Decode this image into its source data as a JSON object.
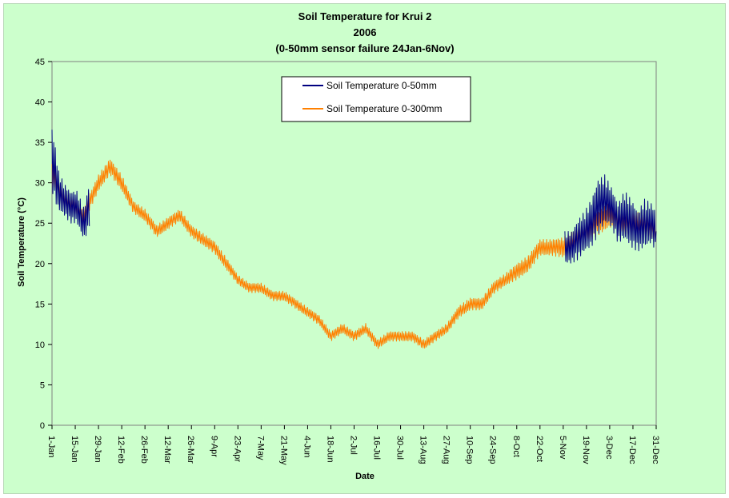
{
  "chart_data": {
    "type": "line",
    "title": "Soil Temperature for Krui 2",
    "subtitle": "2006",
    "note": "(0-50mm sensor failure 24Jan-6Nov)",
    "xlabel": "Date",
    "ylabel": "Soil Temperature (°C)",
    "ylim": [
      0,
      45
    ],
    "yticks": [
      0,
      5,
      10,
      15,
      20,
      25,
      30,
      35,
      40,
      45
    ],
    "xlim": [
      "2006-01-01",
      "2006-12-31"
    ],
    "xticks": [
      "1-Jan",
      "15-Jan",
      "29-Jan",
      "12-Feb",
      "26-Feb",
      "12-Mar",
      "26-Mar",
      "9-Apr",
      "23-Apr",
      "7-May",
      "21-May",
      "4-Jun",
      "18-Jun",
      "2-Jul",
      "16-Jul",
      "30-Jul",
      "13-Aug",
      "27-Aug",
      "10-Sep",
      "24-Sep",
      "8-Oct",
      "22-Oct",
      "5-Nov",
      "19-Nov",
      "3-Dec",
      "17-Dec",
      "31-Dec"
    ],
    "grid": false,
    "legend_position": "top-center",
    "series": [
      {
        "name": "Soil Temperature 0-50mm",
        "color": "#000080",
        "x": [
          "2006-01-01",
          "2006-01-03",
          "2006-01-05",
          "2006-01-08",
          "2006-01-12",
          "2006-01-16",
          "2006-01-20",
          "2006-01-22",
          "2006-01-24",
          "2006-11-06",
          "2006-11-10",
          "2006-11-14",
          "2006-11-18",
          "2006-11-22",
          "2006-11-26",
          "2006-11-30",
          "2006-12-04",
          "2006-12-08",
          "2006-12-12",
          "2006-12-16",
          "2006-12-20",
          "2006-12-24",
          "2006-12-28",
          "2006-12-31"
        ],
        "mean": [
          33,
          31,
          29,
          28,
          27,
          27,
          25,
          26,
          28,
          22,
          22,
          23,
          24,
          25,
          27,
          28,
          27,
          25,
          26,
          25,
          24,
          25,
          25,
          24
        ],
        "amplitude": [
          8,
          7,
          5,
          4,
          4,
          4,
          4,
          5,
          6,
          4,
          4,
          5,
          5,
          6,
          7,
          6,
          5,
          5,
          6,
          6,
          5,
          6,
          5,
          5
        ]
      },
      {
        "name": "Soil Temperature  0-300mm",
        "color": "#ff8000",
        "x": [
          "2006-01-01",
          "2006-01-08",
          "2006-01-15",
          "2006-01-20",
          "2006-01-29",
          "2006-02-05",
          "2006-02-12",
          "2006-02-19",
          "2006-02-26",
          "2006-03-05",
          "2006-03-12",
          "2006-03-19",
          "2006-03-26",
          "2006-04-02",
          "2006-04-09",
          "2006-04-16",
          "2006-04-23",
          "2006-04-30",
          "2006-05-07",
          "2006-05-14",
          "2006-05-21",
          "2006-05-28",
          "2006-06-04",
          "2006-06-11",
          "2006-06-18",
          "2006-06-25",
          "2006-07-02",
          "2006-07-09",
          "2006-07-16",
          "2006-07-23",
          "2006-07-30",
          "2006-08-06",
          "2006-08-13",
          "2006-08-20",
          "2006-08-27",
          "2006-09-03",
          "2006-09-10",
          "2006-09-17",
          "2006-09-24",
          "2006-10-01",
          "2006-10-08",
          "2006-10-15",
          "2006-10-22",
          "2006-10-29",
          "2006-11-05",
          "2006-11-12",
          "2006-11-19",
          "2006-11-26",
          "2006-12-03",
          "2006-12-10",
          "2006-12-17",
          "2006-12-24",
          "2006-12-31"
        ],
        "mean": [
          31,
          28,
          27,
          26,
          30,
          32,
          30,
          27,
          26,
          24,
          25,
          26,
          24,
          23,
          22,
          20,
          18,
          17,
          17,
          16,
          16,
          15,
          14,
          13,
          11,
          12,
          11,
          12,
          10,
          11,
          11,
          11,
          10,
          11,
          12,
          14,
          15,
          15,
          17,
          18,
          19,
          20,
          22,
          22,
          22,
          23,
          24,
          25,
          26,
          25,
          25,
          25,
          24
        ],
        "amplitude": [
          3,
          2,
          2,
          2,
          2,
          2,
          2,
          1.5,
          1.5,
          1.5,
          1.5,
          1.5,
          1.5,
          1.5,
          1.5,
          1.5,
          1.2,
          1.2,
          1.2,
          1.2,
          1.2,
          1.2,
          1.2,
          1.2,
          1.2,
          1.2,
          1.2,
          1.2,
          1.2,
          1.2,
          1.2,
          1.2,
          1.2,
          1.2,
          1.2,
          1.5,
          1.5,
          1.5,
          1.5,
          1.5,
          2,
          2,
          2,
          2,
          2.5,
          2.5,
          3,
          3,
          3,
          3,
          3,
          3,
          3
        ]
      }
    ]
  }
}
